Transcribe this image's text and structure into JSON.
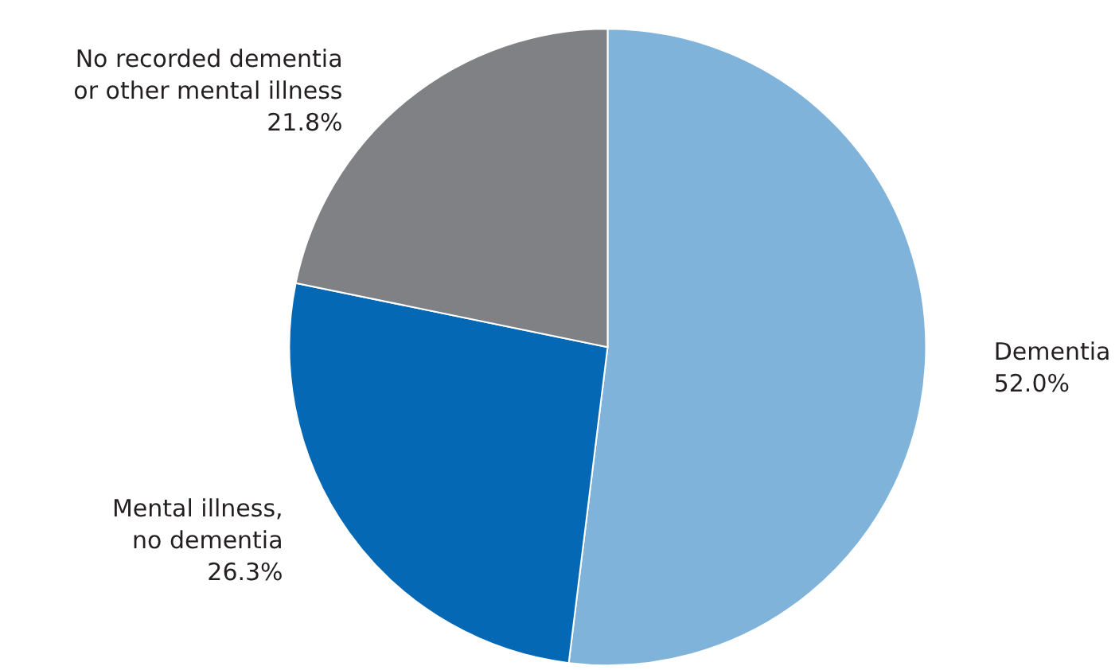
{
  "chart_data": {
    "type": "pie",
    "categories": [
      "Dementia",
      "Mental illness,\nno dementia",
      "No recorded dementia\nor other mental illness"
    ],
    "values": [
      52.0,
      26.3,
      21.8
    ],
    "value_labels": [
      "52.0%",
      "26.3%",
      "21.8%"
    ],
    "colors": [
      "#7fb3da",
      "#0568b4",
      "#808184"
    ],
    "legend": false
  }
}
